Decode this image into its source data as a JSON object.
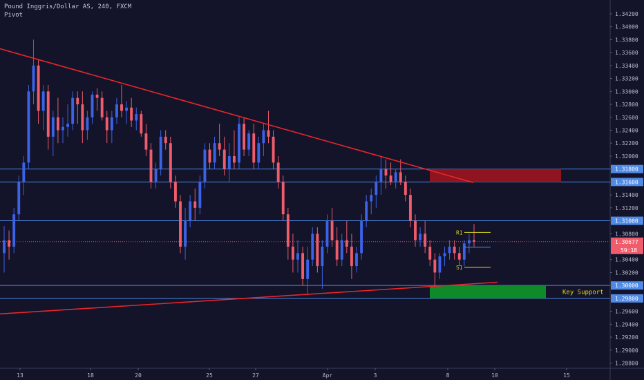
{
  "header": {
    "symbol_line": "Pound Inggris/Dollar AS, 240, FXCM",
    "indicator": "Pivot"
  },
  "colors": {
    "background": "#131329",
    "up_candle": "#3c62e6",
    "down_candle": "#ef5d6c",
    "trendline": "#e8262b",
    "level_line": "#4e8ae6",
    "resistance_box": "#8e1420",
    "support_box": "#0f8a2a",
    "pivot_line": "#d8d21e",
    "axis_text": "#b8bccb",
    "price_tag": "#4e8ae6",
    "last_price_tag": "#ef5d6c"
  },
  "chart_data": {
    "type": "candlestick",
    "ylim": [
      1.2872,
      1.3436
    ],
    "y_ticks": [
      "1.34200",
      "1.34000",
      "1.33800",
      "1.33600",
      "1.33400",
      "1.33200",
      "1.33000",
      "1.32800",
      "1.32600",
      "1.32400",
      "1.32200",
      "1.32000",
      "1.31800",
      "1.31600",
      "1.31400",
      "1.31200",
      "1.31000",
      "1.30800",
      "1.30677",
      "1.30400",
      "1.30200",
      "1.30000",
      "1.29800",
      "1.29600",
      "1.29400",
      "1.29200",
      "1.29000",
      "1.28800"
    ],
    "x_ticks": [
      "13",
      "18",
      "20",
      "25",
      "27",
      "Apr",
      "3",
      "8",
      "10",
      "15"
    ],
    "horizontal_levels": [
      "1.31800",
      "1.31600",
      "1.31000",
      "1.30000",
      "1.29800"
    ],
    "highlighted_ticks": [
      "1.31800",
      "1.31600",
      "1.31000",
      "1.30000",
      "1.29800"
    ],
    "last_price": "1.30677",
    "countdown": "59:18",
    "trendlines": [
      {
        "name": "descending resistance",
        "from": [
          0,
          1.3366
        ],
        "to": [
          685,
          1.3159
        ]
      },
      {
        "name": "ascending support",
        "from": [
          0,
          1.2956
        ],
        "to": [
          720,
          1.3005
        ]
      }
    ],
    "zones": [
      {
        "label": "",
        "price_range": [
          1.316,
          1.318
        ]
      },
      {
        "label": "Key Support",
        "price_range": [
          1.298,
          1.3
        ]
      }
    ],
    "pivots": [
      {
        "label": "R1",
        "value": 1.3082
      },
      {
        "label": "",
        "value": 1.3059
      },
      {
        "label": "S1",
        "value": 1.3028
      }
    ],
    "candles": [
      [
        1.305,
        1.3092,
        1.302,
        1.307
      ],
      [
        1.307,
        1.3085,
        1.304,
        1.306
      ],
      [
        1.306,
        1.312,
        1.305,
        1.311
      ],
      [
        1.311,
        1.317,
        1.31,
        1.316
      ],
      [
        1.316,
        1.32,
        1.314,
        1.319
      ],
      [
        1.319,
        1.331,
        1.318,
        1.33
      ],
      [
        1.33,
        1.338,
        1.328,
        1.334
      ],
      [
        1.334,
        1.335,
        1.325,
        1.327
      ],
      [
        1.327,
        1.331,
        1.324,
        1.33
      ],
      [
        1.33,
        1.331,
        1.321,
        1.323
      ],
      [
        1.323,
        1.327,
        1.32,
        1.326
      ],
      [
        1.326,
        1.329,
        1.322,
        1.324
      ],
      [
        1.324,
        1.326,
        1.322,
        1.3245
      ],
      [
        1.3245,
        1.328,
        1.323,
        1.325
      ],
      [
        1.325,
        1.33,
        1.324,
        1.329
      ],
      [
        1.329,
        1.33,
        1.325,
        1.328
      ],
      [
        1.328,
        1.33,
        1.322,
        1.324
      ],
      [
        1.324,
        1.327,
        1.3225,
        1.326
      ],
      [
        1.326,
        1.33,
        1.325,
        1.3295
      ],
      [
        1.3295,
        1.3305,
        1.327,
        1.329
      ],
      [
        1.329,
        1.33,
        1.3255,
        1.326
      ],
      [
        1.326,
        1.327,
        1.322,
        1.324
      ],
      [
        1.324,
        1.327,
        1.322,
        1.326
      ],
      [
        1.326,
        1.329,
        1.325,
        1.328
      ],
      [
        1.328,
        1.331,
        1.326,
        1.327
      ],
      [
        1.327,
        1.3285,
        1.325,
        1.3275
      ],
      [
        1.3275,
        1.329,
        1.3245,
        1.3255
      ],
      [
        1.3255,
        1.3275,
        1.324,
        1.3265
      ],
      [
        1.3265,
        1.327,
        1.323,
        1.3235
      ],
      [
        1.3235,
        1.325,
        1.32,
        1.321
      ],
      [
        1.321,
        1.322,
        1.315,
        1.316
      ],
      [
        1.316,
        1.319,
        1.315,
        1.318
      ],
      [
        1.318,
        1.324,
        1.317,
        1.323
      ],
      [
        1.323,
        1.324,
        1.321,
        1.322
      ],
      [
        1.322,
        1.323,
        1.315,
        1.316
      ],
      [
        1.316,
        1.317,
        1.312,
        1.313
      ],
      [
        1.313,
        1.314,
        1.305,
        1.306
      ],
      [
        1.306,
        1.312,
        1.304,
        1.31
      ],
      [
        1.31,
        1.314,
        1.309,
        1.313
      ],
      [
        1.313,
        1.315,
        1.31,
        1.312
      ],
      [
        1.312,
        1.317,
        1.311,
        1.316
      ],
      [
        1.316,
        1.322,
        1.315,
        1.321
      ],
      [
        1.321,
        1.322,
        1.318,
        1.319
      ],
      [
        1.319,
        1.323,
        1.318,
        1.322
      ],
      [
        1.322,
        1.325,
        1.32,
        1.321
      ],
      [
        1.321,
        1.323,
        1.317,
        1.318
      ],
      [
        1.318,
        1.322,
        1.316,
        1.32
      ],
      [
        1.32,
        1.324,
        1.318,
        1.319
      ],
      [
        1.319,
        1.326,
        1.318,
        1.325
      ],
      [
        1.325,
        1.326,
        1.32,
        1.321
      ],
      [
        1.321,
        1.324,
        1.32,
        1.3235
      ],
      [
        1.3235,
        1.325,
        1.318,
        1.319
      ],
      [
        1.319,
        1.323,
        1.318,
        1.322
      ],
      [
        1.322,
        1.325,
        1.32,
        1.324
      ],
      [
        1.324,
        1.327,
        1.322,
        1.323
      ],
      [
        1.323,
        1.324,
        1.318,
        1.319
      ],
      [
        1.319,
        1.32,
        1.315,
        1.316
      ],
      [
        1.316,
        1.317,
        1.31,
        1.311
      ],
      [
        1.311,
        1.312,
        1.304,
        1.306
      ],
      [
        1.306,
        1.308,
        1.302,
        1.304
      ],
      [
        1.304,
        1.307,
        1.302,
        1.305
      ],
      [
        1.305,
        1.306,
        1.3,
        1.301
      ],
      [
        1.301,
        1.306,
        1.2985,
        1.304
      ],
      [
        1.304,
        1.309,
        1.303,
        1.308
      ],
      [
        1.308,
        1.309,
        1.302,
        1.303
      ],
      [
        1.303,
        1.307,
        1.2995,
        1.306
      ],
      [
        1.306,
        1.311,
        1.305,
        1.31
      ],
      [
        1.31,
        1.312,
        1.306,
        1.307
      ],
      [
        1.307,
        1.309,
        1.303,
        1.304
      ],
      [
        1.304,
        1.308,
        1.303,
        1.307
      ],
      [
        1.307,
        1.31,
        1.305,
        1.306
      ],
      [
        1.306,
        1.308,
        1.301,
        1.303
      ],
      [
        1.303,
        1.306,
        1.302,
        1.305
      ],
      [
        1.305,
        1.311,
        1.304,
        1.31
      ],
      [
        1.31,
        1.314,
        1.309,
        1.313
      ],
      [
        1.313,
        1.315,
        1.311,
        1.314
      ],
      [
        1.314,
        1.317,
        1.312,
        1.316
      ],
      [
        1.316,
        1.32,
        1.314,
        1.318
      ],
      [
        1.318,
        1.3195,
        1.315,
        1.317
      ],
      [
        1.317,
        1.319,
        1.3155,
        1.316
      ],
      [
        1.316,
        1.318,
        1.315,
        1.3175
      ],
      [
        1.3175,
        1.3195,
        1.3155,
        1.316
      ],
      [
        1.316,
        1.317,
        1.313,
        1.314
      ],
      [
        1.314,
        1.315,
        1.309,
        1.31
      ],
      [
        1.31,
        1.311,
        1.306,
        1.307
      ],
      [
        1.307,
        1.309,
        1.306,
        1.308
      ],
      [
        1.308,
        1.31,
        1.305,
        1.306
      ],
      [
        1.306,
        1.307,
        1.303,
        1.304
      ],
      [
        1.304,
        1.305,
        1.3,
        1.302
      ],
      [
        1.302,
        1.305,
        1.301,
        1.3045
      ],
      [
        1.3045,
        1.306,
        1.303,
        1.305
      ],
      [
        1.305,
        1.307,
        1.304,
        1.306
      ],
      [
        1.306,
        1.307,
        1.304,
        1.305
      ],
      [
        1.305,
        1.306,
        1.303,
        1.304
      ],
      [
        1.304,
        1.307,
        1.303,
        1.3065
      ],
      [
        1.3065,
        1.308,
        1.305,
        1.307
      ],
      [
        1.307,
        1.3095,
        1.306,
        1.30677
      ]
    ]
  },
  "labels": {
    "key_support": "Key Support",
    "r1": "R1",
    "s1": "S1"
  }
}
